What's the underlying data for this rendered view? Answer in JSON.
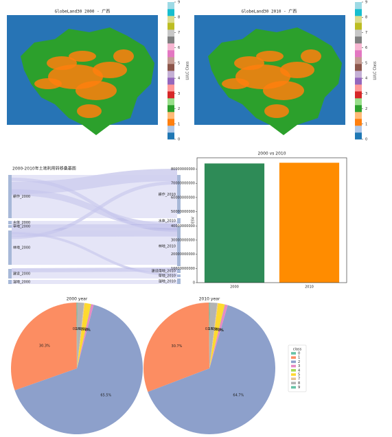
{
  "maps": [
    {
      "title": "GlobeLand30 2000 - 广西",
      "colorbar_label": "LULC Class",
      "clim": [
        0,
        9
      ],
      "colorbar_ticks": [
        0,
        1,
        2,
        3,
        4,
        5,
        6,
        7,
        8,
        9
      ]
    },
    {
      "title": "GlobeLand30 2010 - 广西",
      "colorbar_label": "LULC Class",
      "clim": [
        0,
        9
      ],
      "colorbar_ticks": [
        0,
        1,
        2,
        3,
        4,
        5,
        6,
        7,
        8,
        9
      ]
    }
  ],
  "sankey": {
    "title": "2000-2010年土地利用转移桑基图",
    "left_nodes": [
      "耕作_2000",
      "水体_2000",
      "草地_2000",
      "林地_2000",
      "建设_2000",
      "湿地_2000"
    ],
    "right_nodes": [
      "耕作_2010",
      "水体_2010",
      "林地_2010",
      "建设用地_2010",
      "草地_2010",
      "湿地_2010"
    ]
  },
  "chart_data": [
    {
      "type": "bar",
      "title": "2000 vs 2010",
      "y_label": "ESV",
      "categories": [
        "2000",
        "2010"
      ],
      "values": [
        84000000000,
        84500000000
      ],
      "colors": [
        "#2e8b57",
        "#ff8c00"
      ],
      "ylim": [
        0,
        88000000000
      ],
      "yticks": [
        0,
        10000000000,
        20000000000,
        30000000000,
        40000000000,
        50000000000,
        60000000000,
        70000000000,
        80000000000
      ]
    },
    {
      "type": "pie",
      "title": "2000 year",
      "categories": [
        "0",
        "1",
        "2",
        "3",
        "4",
        "5",
        "7",
        "8",
        "9"
      ],
      "values": [
        0.1,
        30.3,
        65.5,
        0.6,
        0.1,
        1.5,
        0.2,
        1.6,
        0.1
      ],
      "value_labels": [
        "0.1%",
        "30.3%",
        "65.5%",
        "0.6%",
        "0.1%",
        "1.5%",
        "0.2%",
        "1.6%",
        "0.1%"
      ],
      "colors": [
        "#66c2a5",
        "#fc8d62",
        "#8da0cb",
        "#e78ac3",
        "#a6d854",
        "#ffd92f",
        "#e5c494",
        "#b3b3b3",
        "#66c2a5"
      ]
    },
    {
      "type": "pie",
      "title": "2010 year",
      "categories": [
        "0",
        "1",
        "2",
        "3",
        "4",
        "5",
        "7",
        "8",
        "9"
      ],
      "values": [
        0.1,
        30.7,
        64.7,
        0.7,
        0.1,
        1.6,
        0.2,
        1.8,
        0.1
      ],
      "value_labels": [
        "0.1%",
        "30.7%",
        "64.7%",
        "0.7%",
        "0.1%",
        "1.6%",
        "0.2%",
        "1.8%",
        "0.1%"
      ],
      "colors": [
        "#66c2a5",
        "#fc8d62",
        "#8da0cb",
        "#e78ac3",
        "#a6d854",
        "#ffd92f",
        "#e5c494",
        "#b3b3b3",
        "#66c2a5"
      ],
      "legend_title": "class"
    }
  ]
}
